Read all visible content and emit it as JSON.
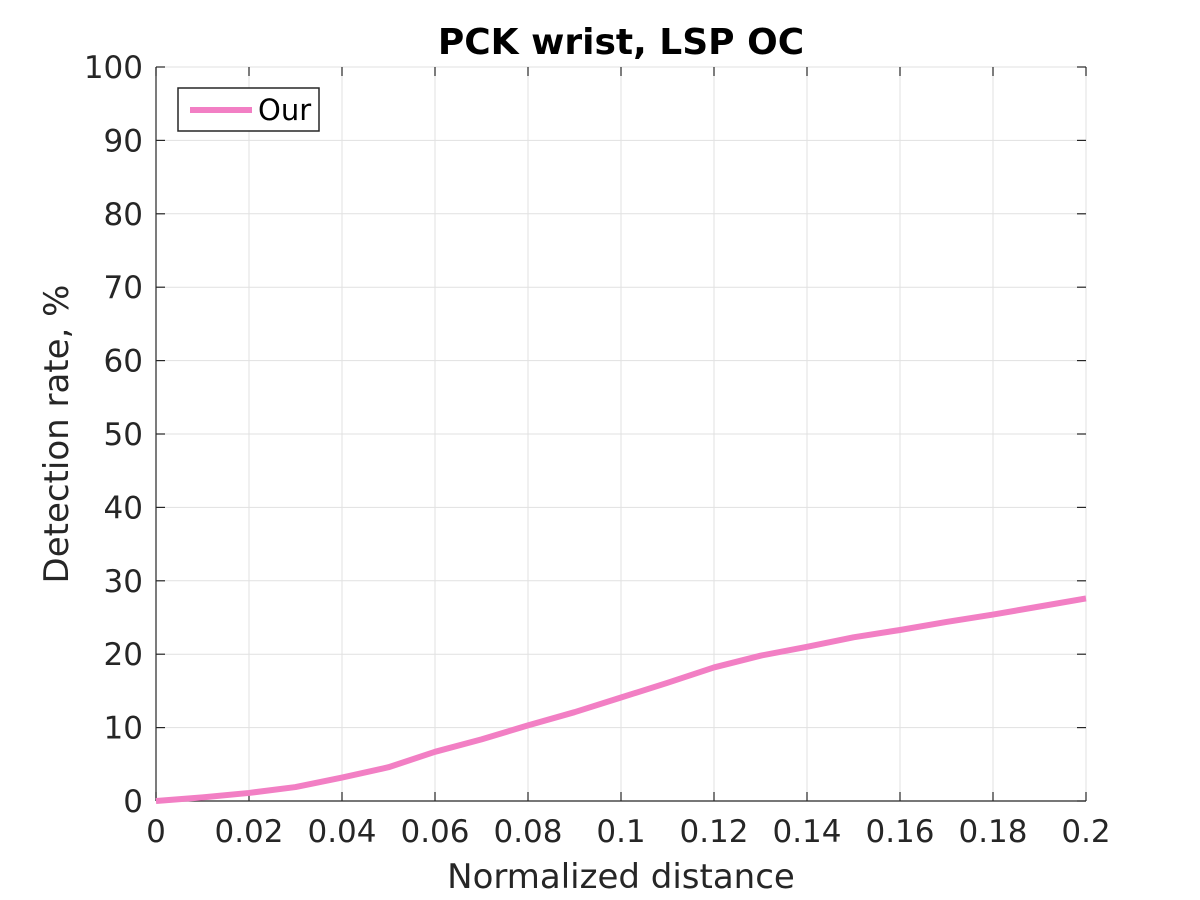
{
  "chart_data": {
    "type": "line",
    "title": "PCK wrist, LSP OC",
    "xlabel": "Normalized distance",
    "ylabel": "Detection rate, %",
    "xlim": [
      0,
      0.2
    ],
    "ylim": [
      0,
      100
    ],
    "x_ticks": [
      "0",
      "0.02",
      "0.04",
      "0.06",
      "0.08",
      "0.1",
      "0.12",
      "0.14",
      "0.16",
      "0.18",
      "0.2"
    ],
    "y_ticks": [
      "0",
      "10",
      "20",
      "30",
      "40",
      "50",
      "60",
      "70",
      "80",
      "90",
      "100"
    ],
    "x_tick_values": [
      0,
      0.02,
      0.04,
      0.06,
      0.08,
      0.1,
      0.12,
      0.14,
      0.16,
      0.18,
      0.2
    ],
    "y_tick_values": [
      0,
      10,
      20,
      30,
      40,
      50,
      60,
      70,
      80,
      90,
      100
    ],
    "grid": true,
    "legend_position": "top-left",
    "series": [
      {
        "name": "Our",
        "color": "#f27fc4",
        "x": [
          0,
          0.01,
          0.02,
          0.03,
          0.04,
          0.05,
          0.06,
          0.07,
          0.08,
          0.09,
          0.1,
          0.11,
          0.12,
          0.13,
          0.14,
          0.15,
          0.16,
          0.17,
          0.18,
          0.19,
          0.2
        ],
        "y": [
          0,
          0.5,
          1.1,
          1.9,
          3.2,
          4.6,
          6.7,
          8.4,
          10.3,
          12.1,
          14.1,
          16.1,
          18.2,
          19.8,
          21.0,
          22.3,
          23.3,
          24.4,
          25.4,
          26.5,
          27.6
        ]
      }
    ]
  }
}
